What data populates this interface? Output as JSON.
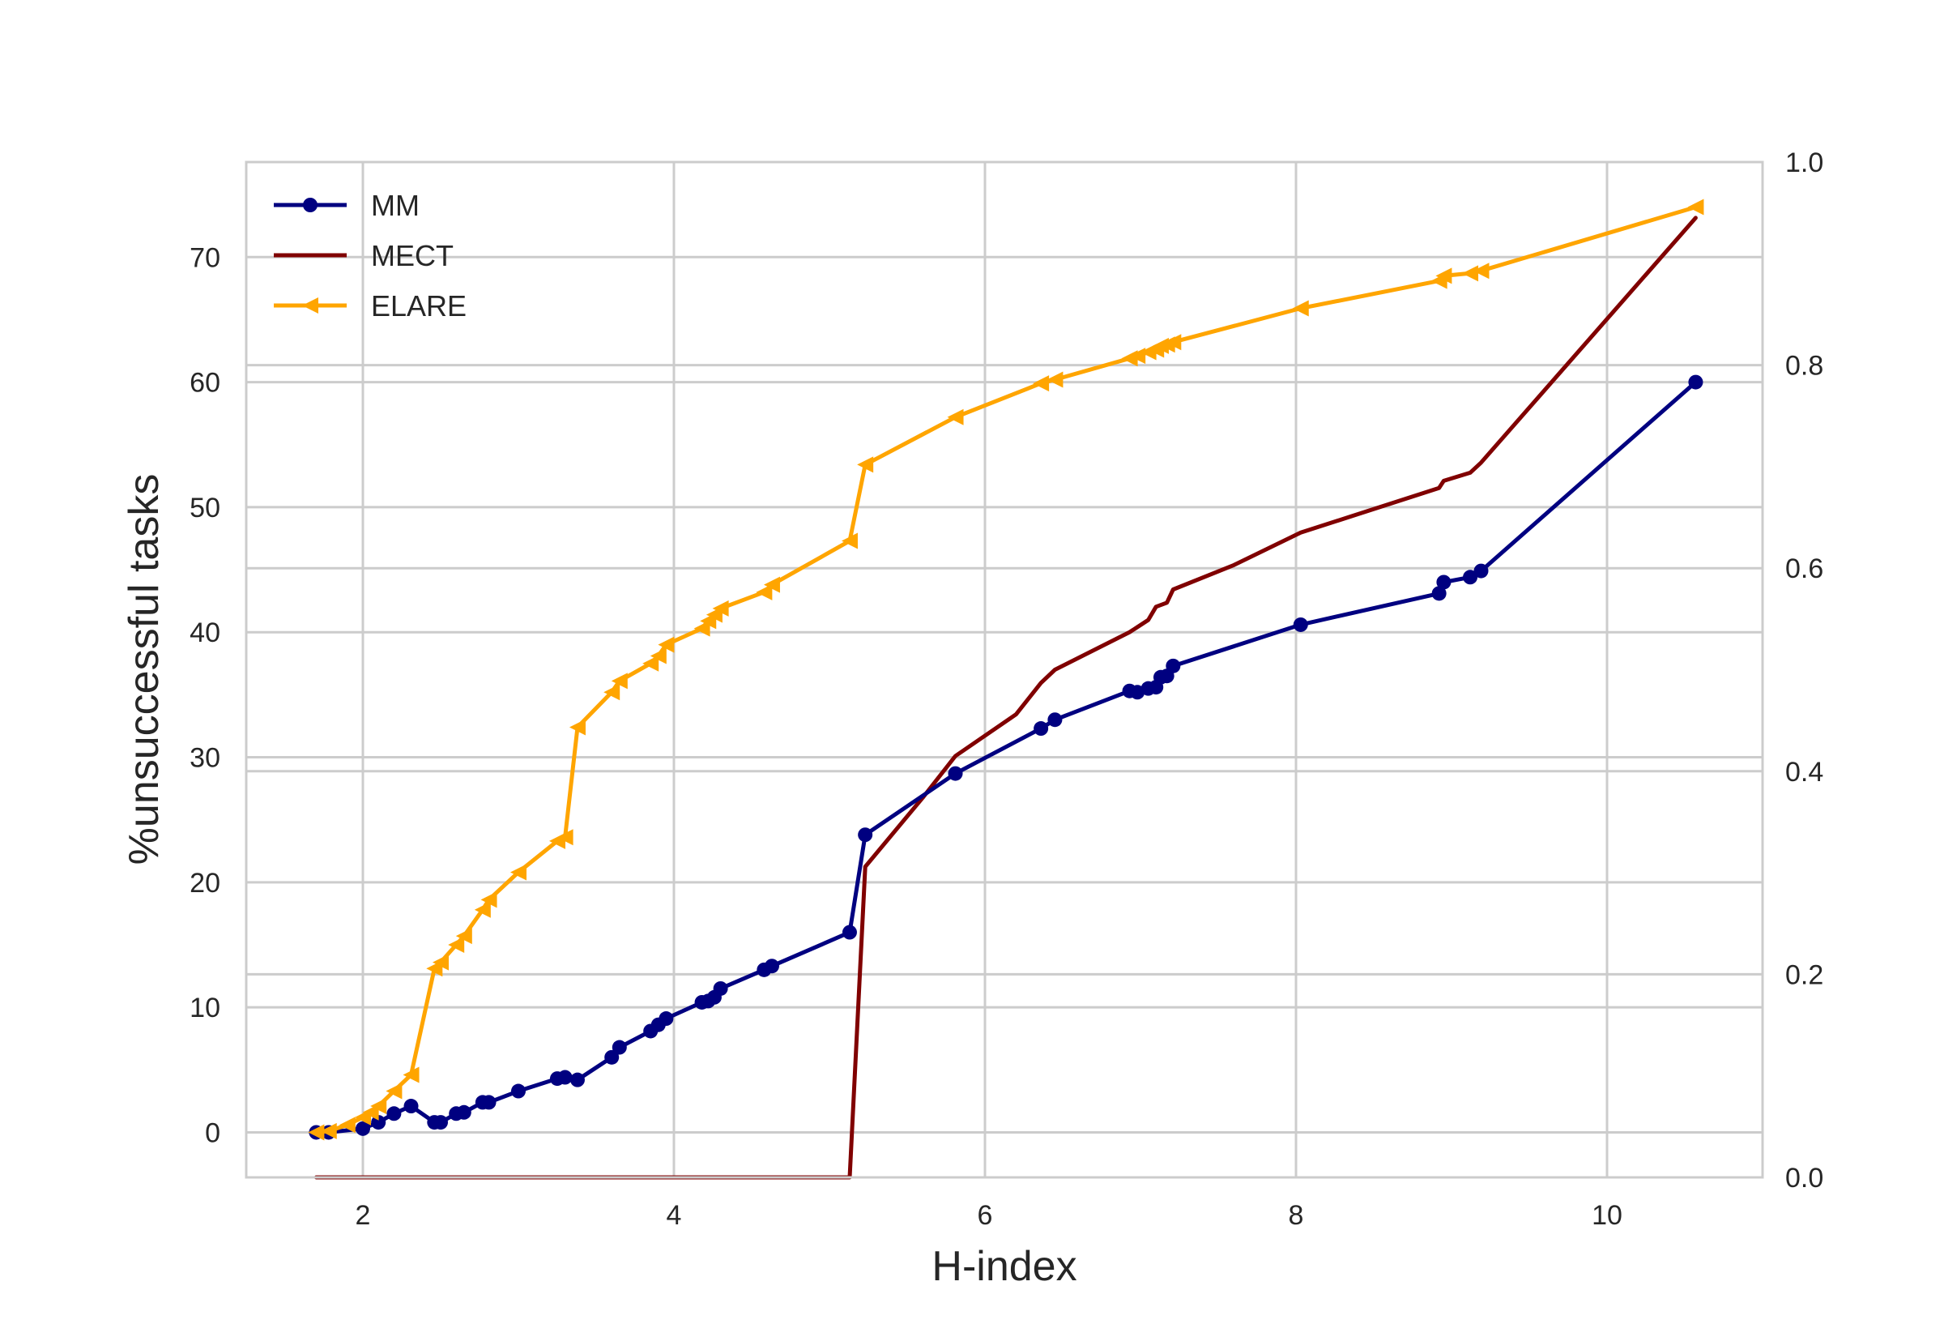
{
  "chart_data": {
    "type": "line",
    "title": "",
    "xlabel": "H-index",
    "ylabel": "%unsuccessful tasks",
    "xlim": [
      1.25,
      11.0
    ],
    "ylim": [
      -3.6,
      77.6
    ],
    "y2lim": [
      0.0,
      1.0
    ],
    "grid": true,
    "legend_position": "top-left",
    "x_ticks": [
      "2",
      "4",
      "6",
      "8",
      "10"
    ],
    "x_tick_values": [
      2,
      4,
      6,
      8,
      10
    ],
    "y_ticks": [
      "0",
      "10",
      "20",
      "30",
      "40",
      "50",
      "60",
      "70"
    ],
    "y_tick_values": [
      0,
      10,
      20,
      30,
      40,
      50,
      60,
      70
    ],
    "y2_ticks": [
      "0.0",
      "0.2",
      "0.4",
      "0.6",
      "0.8",
      "1.0"
    ],
    "y2_tick_values": [
      0.0,
      0.2,
      0.4,
      0.6,
      0.8,
      1.0
    ],
    "series": [
      {
        "name": "MM",
        "color": "#000080",
        "marker": "circle",
        "x": [
          1.7,
          1.78,
          2.0,
          2.1,
          2.2,
          2.31,
          2.46,
          2.5,
          2.6,
          2.65,
          2.77,
          2.81,
          3.0,
          3.25,
          3.3,
          3.38,
          3.6,
          3.65,
          3.85,
          3.9,
          3.95,
          4.18,
          4.22,
          4.26,
          4.3,
          4.58,
          4.63,
          5.13,
          5.23,
          5.81,
          6.36,
          6.45,
          6.93,
          6.98,
          7.05,
          7.1,
          7.13,
          7.17,
          7.21,
          8.03,
          8.92,
          8.95,
          9.12,
          9.19,
          10.57
        ],
        "y": [
          0.0,
          0.0,
          0.3,
          0.8,
          1.5,
          2.1,
          0.8,
          0.8,
          1.5,
          1.6,
          2.4,
          2.4,
          3.3,
          4.3,
          4.4,
          4.2,
          6.0,
          6.8,
          8.1,
          8.6,
          9.1,
          10.4,
          10.5,
          10.8,
          11.5,
          13.0,
          13.3,
          16.0,
          23.8,
          28.7,
          32.3,
          33.0,
          35.3,
          35.2,
          35.5,
          35.6,
          36.4,
          36.5,
          37.3,
          40.6,
          43.1,
          44.0,
          44.4,
          44.9,
          60.0
        ]
      },
      {
        "name": "MECT",
        "color": "#800000",
        "marker": "none",
        "x": [
          1.7,
          5.13,
          5.23,
          5.6,
          5.81,
          6.2,
          6.36,
          6.45,
          6.93,
          6.98,
          7.05,
          7.1,
          7.17,
          7.21,
          7.6,
          8.03,
          8.92,
          8.95,
          9.12,
          9.19,
          10.57
        ],
        "y": [
          0.0,
          0.0,
          30.6,
          37.4,
          41.5,
          45.6,
          48.7,
          50.0,
          53.7,
          54.2,
          54.9,
          56.2,
          56.6,
          57.9,
          60.3,
          63.5,
          67.9,
          68.6,
          69.4,
          70.4,
          94.5
        ]
      },
      {
        "name": "ELARE",
        "color": "#ffa500",
        "marker": "triangle-left",
        "x": [
          1.7,
          1.78,
          1.9,
          2.0,
          2.05,
          2.1,
          2.2,
          2.31,
          2.46,
          2.5,
          2.6,
          2.65,
          2.77,
          2.81,
          3.0,
          3.25,
          3.3,
          3.38,
          3.6,
          3.65,
          3.85,
          3.9,
          3.95,
          4.18,
          4.22,
          4.26,
          4.3,
          4.58,
          4.63,
          5.13,
          5.23,
          5.81,
          6.36,
          6.45,
          6.93,
          6.98,
          7.05,
          7.1,
          7.13,
          7.17,
          7.21,
          8.03,
          8.92,
          8.95,
          9.12,
          9.19,
          10.57
        ],
        "y": [
          0.0,
          0.1,
          0.6,
          1.2,
          1.6,
          2.1,
          3.3,
          4.6,
          13.1,
          13.6,
          15.0,
          15.7,
          17.8,
          18.6,
          20.8,
          23.3,
          23.6,
          32.4,
          35.2,
          36.1,
          37.5,
          38.1,
          39.0,
          40.3,
          40.9,
          41.4,
          41.9,
          43.2,
          43.8,
          47.3,
          53.4,
          57.2,
          59.9,
          60.2,
          61.9,
          62.1,
          62.4,
          62.6,
          62.9,
          63.0,
          63.2,
          65.9,
          68.1,
          68.5,
          68.7,
          68.9,
          74.0
        ]
      }
    ]
  }
}
